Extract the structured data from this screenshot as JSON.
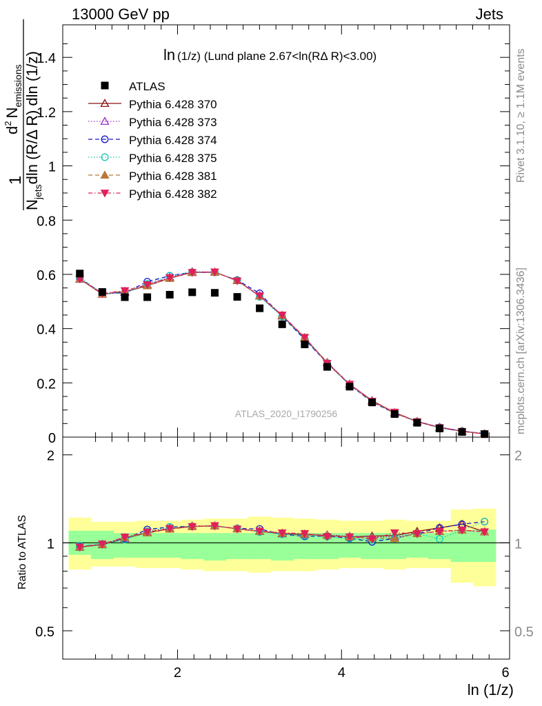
{
  "header": {
    "left": "13000 GeV pp",
    "right": "Jets",
    "title_main": "ln",
    "title_rest": "(1/z)  (Lund plane 2.67<ln(RΔ R)<3.00)",
    "watermark": "ATLAS_2020_I1790256",
    "side_rivet": "Rivet 3.1.10, ≥ 1.1M events",
    "side_mcplots": "mcplots.cern.ch [arXiv:1306.3436]"
  },
  "axes": {
    "ylabel_one": "1",
    "ylabel_numer_d": "d",
    "ylabel_numer_sup": "2",
    "ylabel_numer_n": "N",
    "ylabel_numer_sub": "emissions",
    "ylabel_denom_n": "N",
    "ylabel_denom_sub": "jets",
    "ylabel_denom_rest": "dln (R/Δ R) dln (1/z)",
    "ratio_ylabel": "Ratio to ATLAS",
    "xlabel": "ln (1/z)",
    "x_ticks": [
      "2",
      "4",
      "6"
    ],
    "main_y_ticks": [
      "0",
      "0.2",
      "0.4",
      "0.6",
      "0.8",
      "1",
      "1.2",
      "1.4"
    ],
    "ratio_y_ticks_left": [
      "0.5",
      "1",
      "2"
    ],
    "ratio_y_ticks_right": [
      "0.5",
      "1",
      "2"
    ]
  },
  "colors": {
    "atlas": "#000000",
    "band_inner": "#99ff99",
    "band_outer": "#ffff99"
  },
  "chart_data": {
    "type": "scatter",
    "xlabel": "ln (1/z)",
    "ylabel": "1/N_jets d²N_emissions / dln(R/ΔR) dln(1/z)",
    "xlim": [
      0.6,
      6.05
    ],
    "ylim": [
      0,
      1.52
    ],
    "ratio_ylim": [
      0.4,
      2.3
    ],
    "ratio_scale": "log",
    "x": [
      0.808,
      1.082,
      1.357,
      1.631,
      1.905,
      2.179,
      2.454,
      2.728,
      3.002,
      3.276,
      3.551,
      3.825,
      4.099,
      4.373,
      4.648,
      4.922,
      5.196,
      5.47,
      5.744
    ],
    "reference": {
      "name": "ATLAS",
      "values": [
        0.603,
        0.535,
        0.516,
        0.516,
        0.525,
        0.534,
        0.532,
        0.517,
        0.475,
        0.416,
        0.342,
        0.259,
        0.186,
        0.128,
        0.085,
        0.053,
        0.032,
        0.019,
        0.011
      ],
      "band_inner": [
        [
          0.91,
          1.1
        ],
        [
          0.88,
          1.1
        ],
        [
          0.89,
          1.08
        ],
        [
          0.89,
          1.08
        ],
        [
          0.89,
          1.08
        ],
        [
          0.88,
          1.08
        ],
        [
          0.87,
          1.08
        ],
        [
          0.88,
          1.08
        ],
        [
          0.88,
          1.08
        ],
        [
          0.87,
          1.08
        ],
        [
          0.88,
          1.08
        ],
        [
          0.88,
          1.08
        ],
        [
          0.89,
          1.08
        ],
        [
          0.88,
          1.08
        ],
        [
          0.88,
          1.08
        ],
        [
          0.89,
          1.08
        ],
        [
          0.88,
          1.08
        ],
        [
          0.86,
          1.1
        ],
        [
          0.86,
          1.11
        ]
      ],
      "band_outer": [
        [
          0.81,
          1.22
        ],
        [
          0.83,
          1.18
        ],
        [
          0.83,
          1.18
        ],
        [
          0.82,
          1.19
        ],
        [
          0.82,
          1.19
        ],
        [
          0.81,
          1.2
        ],
        [
          0.8,
          1.21
        ],
        [
          0.8,
          1.21
        ],
        [
          0.79,
          1.23
        ],
        [
          0.8,
          1.22
        ],
        [
          0.8,
          1.21
        ],
        [
          0.81,
          1.2
        ],
        [
          0.82,
          1.19
        ],
        [
          0.82,
          1.19
        ],
        [
          0.81,
          1.2
        ],
        [
          0.82,
          1.19
        ],
        [
          0.82,
          1.19
        ],
        [
          0.73,
          1.3
        ],
        [
          0.71,
          1.31
        ]
      ]
    },
    "series": [
      {
        "name": "Pythia 6.428 370",
        "color": "#8b1010",
        "dash": "",
        "marker": "tri-open",
        "values": [
          0.583,
          0.527,
          0.535,
          0.558,
          0.586,
          0.607,
          0.608,
          0.577,
          0.52,
          0.447,
          0.365,
          0.275,
          0.195,
          0.135,
          0.09,
          0.058,
          0.036,
          0.022,
          0.012
        ]
      },
      {
        "name": "Pythia 6.428 373",
        "color": "#9a30c8",
        "dash": "1.5 2.5",
        "marker": "tri-open",
        "values": [
          0.582,
          0.528,
          0.534,
          0.562,
          0.59,
          0.61,
          0.609,
          0.578,
          0.522,
          0.449,
          0.366,
          0.276,
          0.196,
          0.134,
          0.089,
          0.057,
          0.035,
          0.021,
          0.012
        ]
      },
      {
        "name": "Pythia 6.428 374",
        "color": "#1414cc",
        "dash": "6 4",
        "marker": "circ-open",
        "values": [
          0.585,
          0.53,
          0.532,
          0.573,
          0.595,
          0.608,
          0.607,
          0.579,
          0.53,
          0.445,
          0.36,
          0.273,
          0.193,
          0.129,
          0.088,
          0.057,
          0.036,
          0.022,
          0.013
        ]
      },
      {
        "name": "Pythia 6.428 375",
        "color": "#14c8b4",
        "dash": "1.5 2.5",
        "marker": "circ-open",
        "values": [
          0.59,
          0.53,
          0.53,
          0.565,
          0.595,
          0.607,
          0.607,
          0.578,
          0.517,
          0.445,
          0.362,
          0.272,
          0.192,
          0.131,
          0.088,
          0.057,
          0.033,
          0.021,
          0.013
        ]
      },
      {
        "name": "Pythia 6.428 381",
        "color": "#b87838",
        "dash": "6 4",
        "marker": "tri-fill",
        "values": [
          0.583,
          0.528,
          0.538,
          0.558,
          0.585,
          0.608,
          0.608,
          0.578,
          0.52,
          0.449,
          0.367,
          0.275,
          0.195,
          0.133,
          0.088,
          0.057,
          0.035,
          0.021,
          0.012
        ]
      },
      {
        "name": "Pythia 6.428 382",
        "color": "#e0205a",
        "dash": "6 3 1.5 3",
        "marker": "tri-down-fill",
        "values": [
          0.583,
          0.53,
          0.54,
          0.562,
          0.588,
          0.607,
          0.609,
          0.576,
          0.521,
          0.45,
          0.368,
          0.272,
          0.195,
          0.132,
          0.092,
          0.057,
          0.035,
          0.021,
          0.012
        ]
      }
    ]
  }
}
